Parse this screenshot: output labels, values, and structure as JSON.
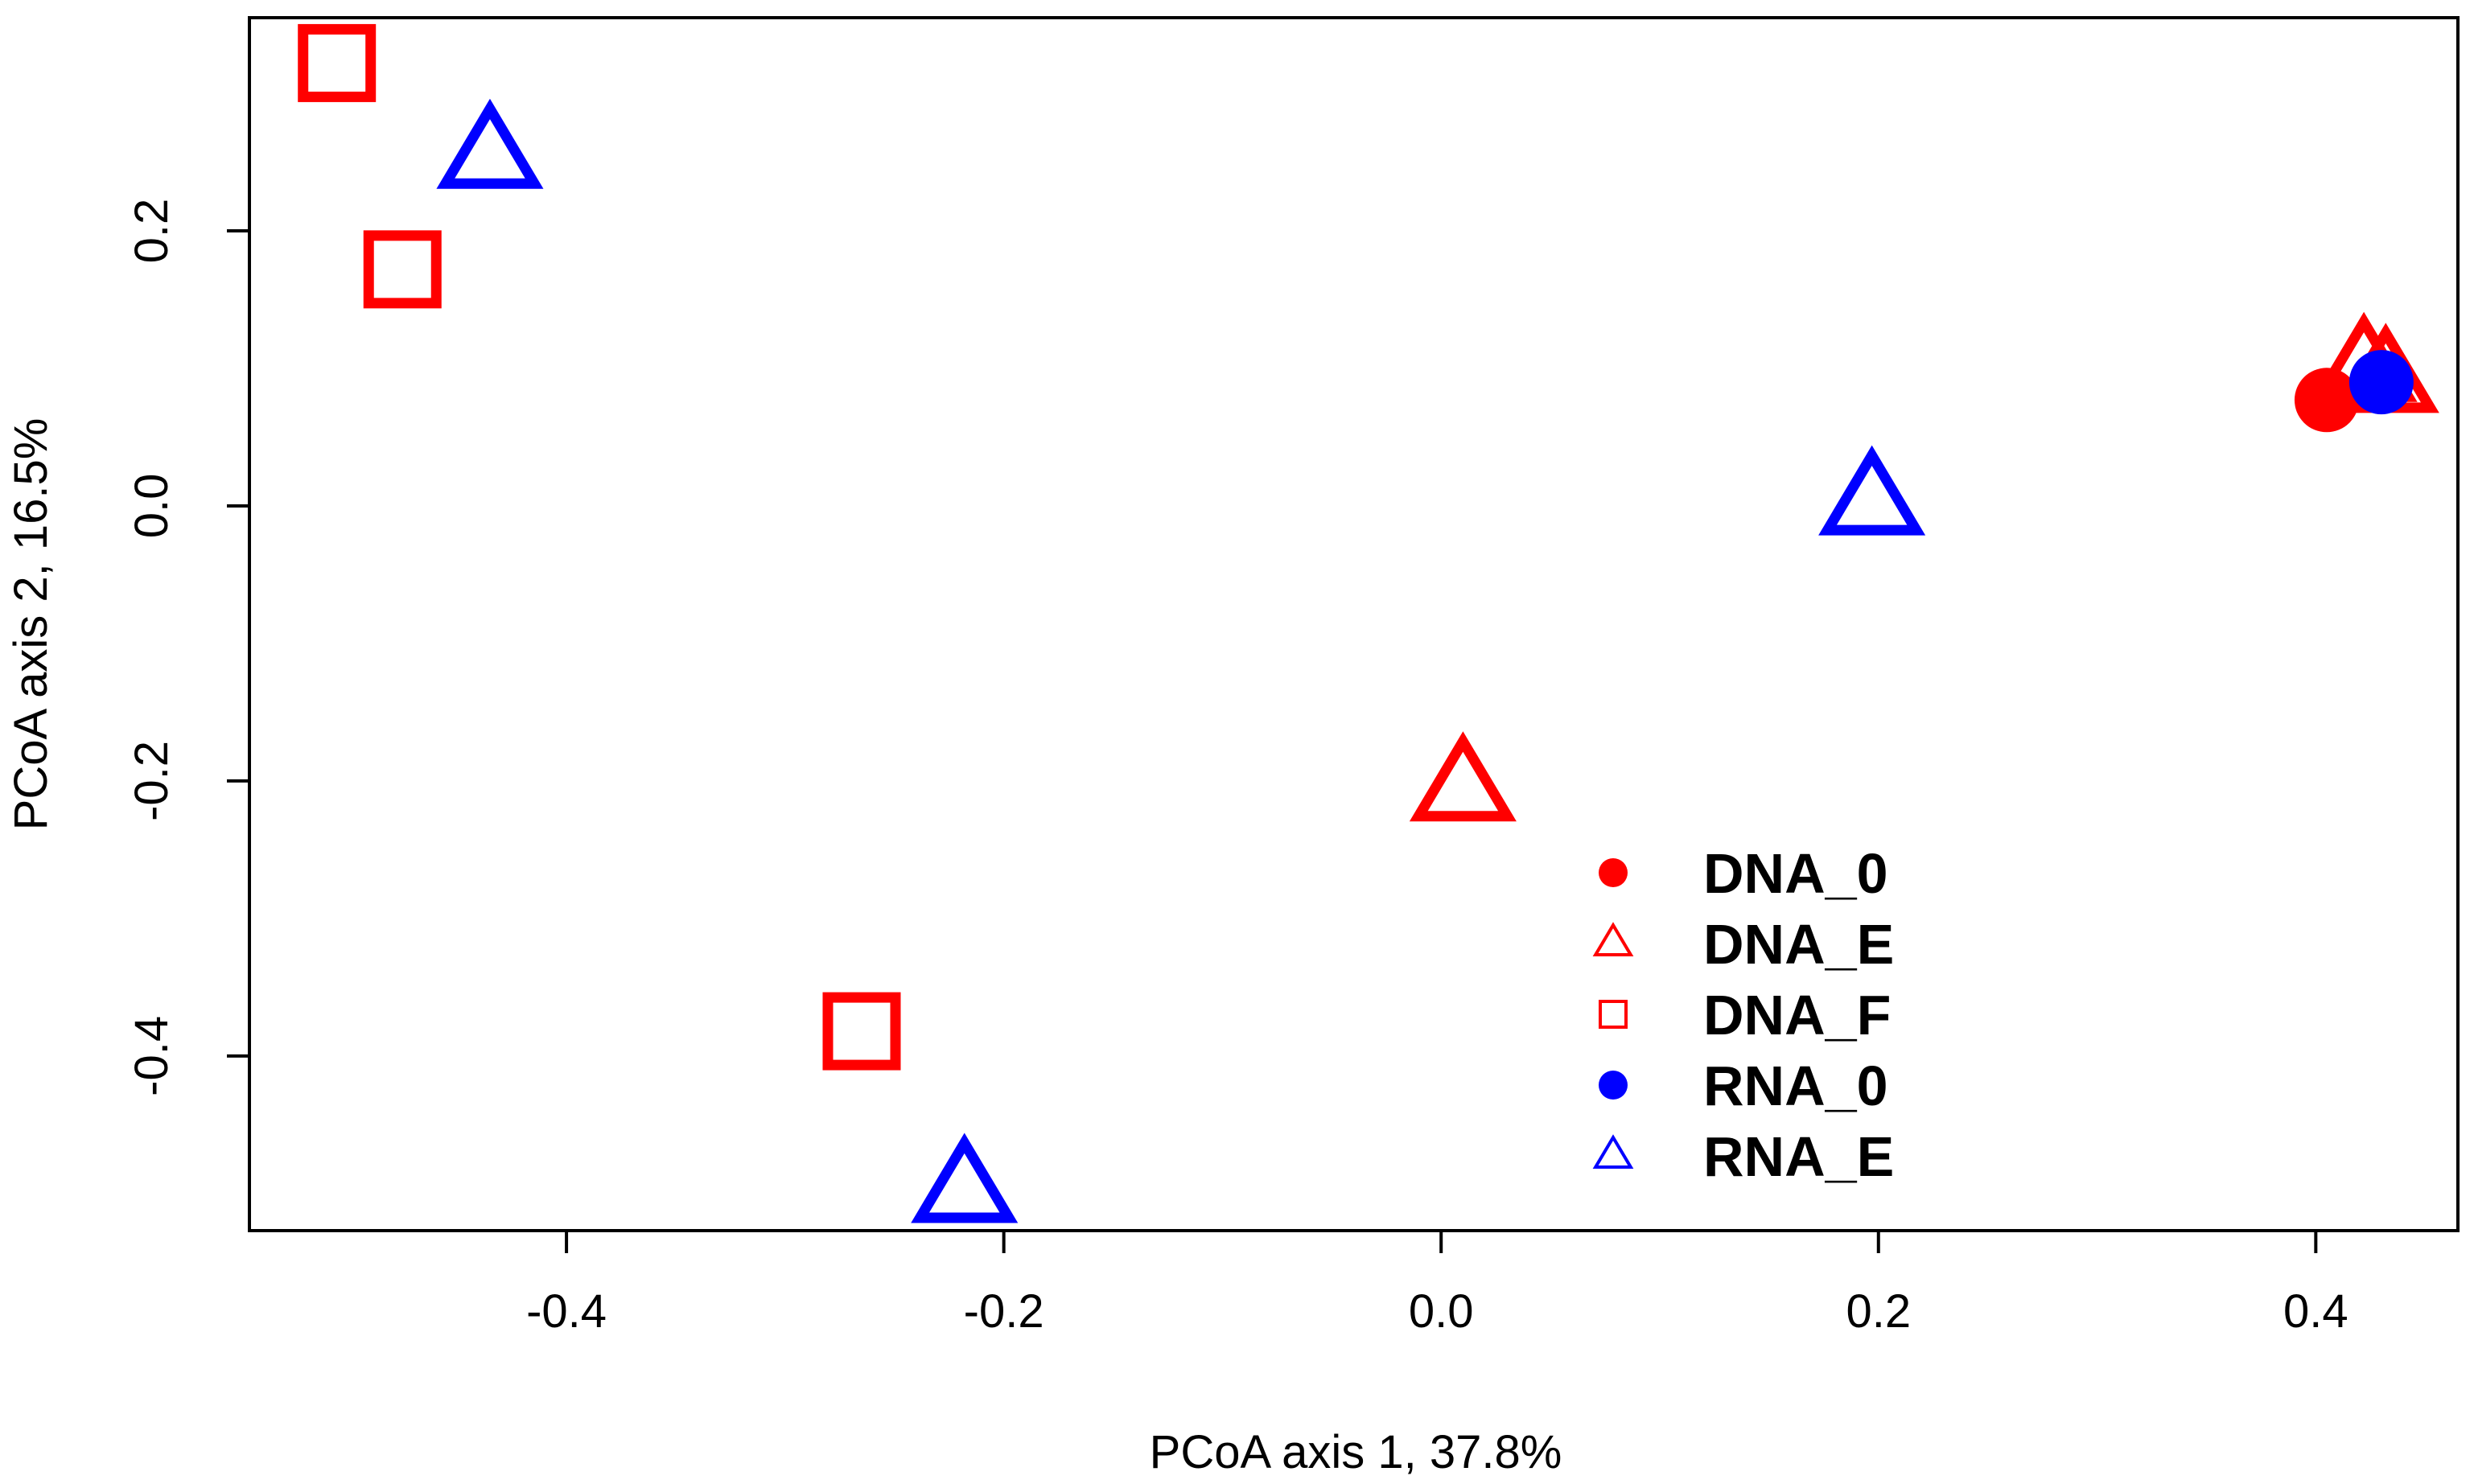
{
  "chart_data": {
    "type": "scatter",
    "xlabel": "PCoA axis 1, 37.8%",
    "ylabel": "PCoA axis 2, 16.5%",
    "xlim": [
      -0.545,
      0.465
    ],
    "ylim": [
      -0.527,
      0.355
    ],
    "x_ticks": [
      -0.4,
      -0.2,
      0.0,
      0.2,
      0.4
    ],
    "x_tick_labels": [
      "-0.4",
      "-0.2",
      "0.0",
      "0.2",
      "0.4"
    ],
    "y_ticks": [
      -0.4,
      -0.2,
      0.0,
      0.2
    ],
    "y_tick_labels": [
      "-0.4",
      "-0.2",
      "0.0",
      "0.2"
    ],
    "grid": false,
    "legend_position": "bottom-center",
    "series": [
      {
        "name": "DNA_0",
        "shape": "filled-circle",
        "color": "#ff0000",
        "points": [
          {
            "x": 0.405,
            "y": 0.077
          }
        ]
      },
      {
        "name": "DNA_E",
        "shape": "open-triangle",
        "color": "#ff0000",
        "points": [
          {
            "x": 0.01,
            "y": -0.205
          },
          {
            "x": 0.422,
            "y": 0.1
          },
          {
            "x": 0.432,
            "y": 0.092
          }
        ]
      },
      {
        "name": "DNA_F",
        "shape": "open-square",
        "color": "#ff0000",
        "points": [
          {
            "x": -0.505,
            "y": 0.322
          },
          {
            "x": -0.475,
            "y": 0.172
          },
          {
            "x": -0.265,
            "y": -0.382
          }
        ]
      },
      {
        "name": "RNA_0",
        "shape": "filled-circle",
        "color": "#0000ff",
        "points": [
          {
            "x": 0.43,
            "y": 0.09
          }
        ]
      },
      {
        "name": "RNA_E",
        "shape": "open-triangle",
        "color": "#0000ff",
        "points": [
          {
            "x": -0.435,
            "y": 0.255
          },
          {
            "x": -0.218,
            "y": -0.497
          },
          {
            "x": 0.197,
            "y": 0.003
          }
        ]
      }
    ]
  }
}
